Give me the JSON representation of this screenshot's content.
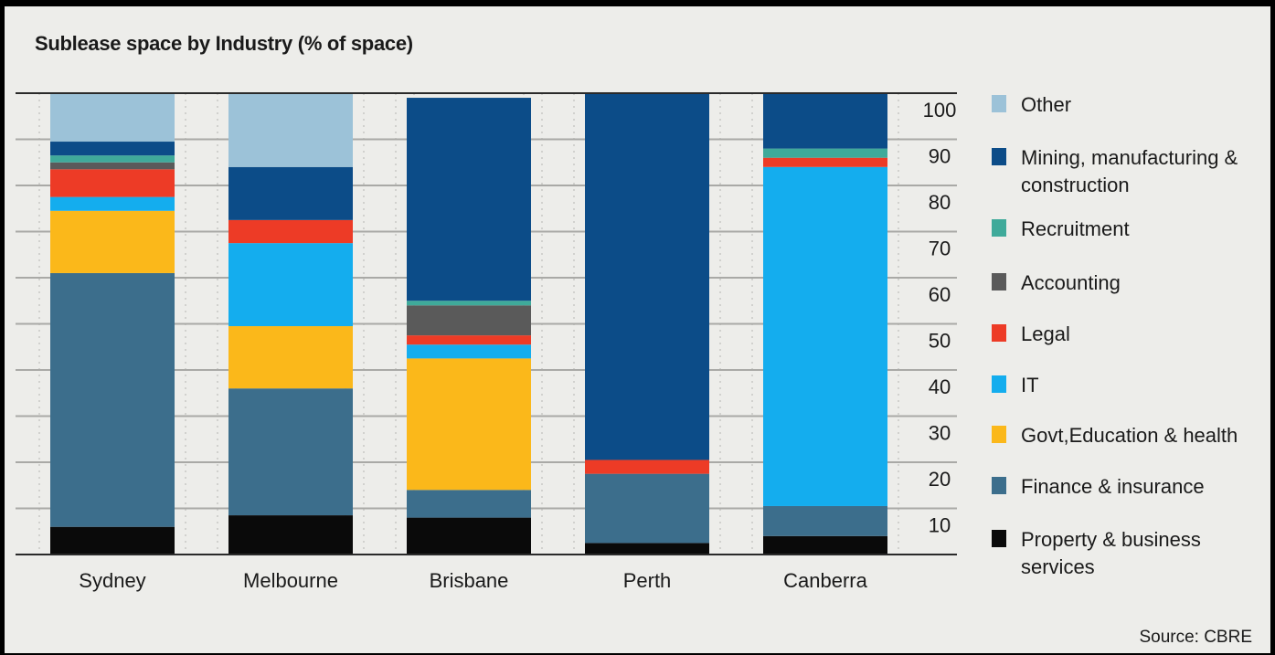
{
  "title": "Sublease space by Industry (% of space)",
  "source": "Source: CBRE",
  "chart_data": {
    "type": "bar",
    "stacked": true,
    "title": "Sublease space by Industry (% of space)",
    "categories": [
      "Sydney",
      "Melbourne",
      "Brisbane",
      "Perth",
      "Canberra"
    ],
    "ylim": [
      0,
      100
    ],
    "yticks": [
      "10",
      "20",
      "30",
      "40",
      "50",
      "60",
      "70",
      "80",
      "90",
      "100"
    ],
    "grid": true,
    "legend_position": "right",
    "series": [
      {
        "name": "Property & business services",
        "color": "#0a0a0a",
        "values": [
          6,
          8.5,
          8,
          2.5,
          4
        ]
      },
      {
        "name": "Finance & insurance",
        "color": "#3c6e8c",
        "values": [
          55,
          27.5,
          6,
          15,
          6.5
        ]
      },
      {
        "name": "Govt,Education & health",
        "color": "#fbb81a",
        "values": [
          13.5,
          13.5,
          28.5,
          0,
          0
        ]
      },
      {
        "name": "IT",
        "color": "#14adee",
        "values": [
          3,
          18,
          3,
          0,
          73.5
        ]
      },
      {
        "name": "Legal",
        "color": "#ed3b26",
        "values": [
          6,
          5,
          2,
          3,
          2
        ]
      },
      {
        "name": "Accounting",
        "color": "#5a5a5a",
        "values": [
          1.5,
          0,
          6.5,
          0,
          0
        ]
      },
      {
        "name": "Recruitment",
        "color": "#3faa9a",
        "values": [
          1.5,
          0,
          1,
          0,
          2
        ]
      },
      {
        "name": "Mining, manufacturing & construction",
        "color": "#0c4c88",
        "values": [
          3,
          11.5,
          44,
          79.5,
          12
        ]
      },
      {
        "name": "Other",
        "color": "#9cc2d8",
        "values": [
          10.5,
          16,
          0,
          0,
          0
        ]
      }
    ]
  },
  "legend": [
    {
      "label": "Other",
      "color": "#9cc2d8"
    },
    {
      "label": "Mining, manufacturing & construction",
      "color": "#0c4c88"
    },
    {
      "label": "Recruitment",
      "color": "#3faa9a"
    },
    {
      "label": "Accounting",
      "color": "#5a5a5a"
    },
    {
      "label": "Legal",
      "color": "#ed3b26"
    },
    {
      "label": "IT",
      "color": "#14adee"
    },
    {
      "label": "Govt,Education & health",
      "color": "#fbb81a"
    },
    {
      "label": "Finance & insurance",
      "color": "#3c6e8c"
    },
    {
      "label": "Property & business services",
      "color": "#0a0a0a"
    }
  ]
}
